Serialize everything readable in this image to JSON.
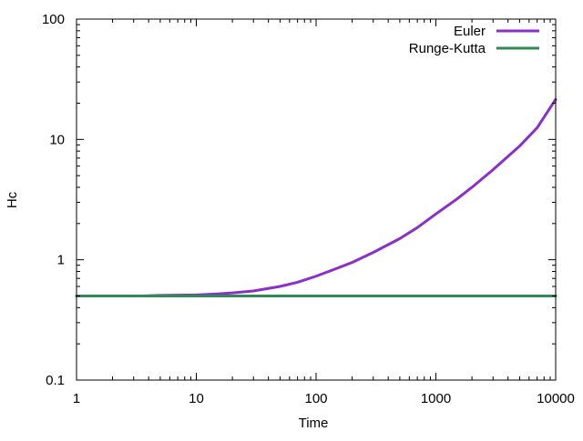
{
  "chart_data": {
    "type": "line",
    "title": "",
    "xlabel": "Time",
    "ylabel": "Hc",
    "x_scale": "log",
    "y_scale": "log",
    "xlim": [
      1,
      10000
    ],
    "ylim": [
      0.1,
      100
    ],
    "x_ticks": [
      {
        "value": 1,
        "label": "1"
      },
      {
        "value": 10,
        "label": "10"
      },
      {
        "value": 100,
        "label": "100"
      },
      {
        "value": 1000,
        "label": "1000"
      },
      {
        "value": 10000,
        "label": "10000"
      }
    ],
    "y_ticks": [
      {
        "value": 0.1,
        "label": "0.1"
      },
      {
        "value": 1,
        "label": "1"
      },
      {
        "value": 10,
        "label": "10"
      },
      {
        "value": 100,
        "label": "100"
      }
    ],
    "grid": false,
    "legend_position": "top-right",
    "series": [
      {
        "name": "Euler",
        "color": "#8b2fc9",
        "points": [
          [
            3.5,
            0.5
          ],
          [
            5,
            0.505
          ],
          [
            10,
            0.51
          ],
          [
            15,
            0.52
          ],
          [
            20,
            0.53
          ],
          [
            30,
            0.55
          ],
          [
            50,
            0.6
          ],
          [
            70,
            0.65
          ],
          [
            100,
            0.73
          ],
          [
            150,
            0.85
          ],
          [
            200,
            0.95
          ],
          [
            300,
            1.15
          ],
          [
            500,
            1.5
          ],
          [
            700,
            1.85
          ],
          [
            1000,
            2.4
          ],
          [
            1500,
            3.2
          ],
          [
            2000,
            4.0
          ],
          [
            3000,
            5.6
          ],
          [
            5000,
            8.8
          ],
          [
            7000,
            12.5
          ],
          [
            10000,
            21.5
          ]
        ]
      },
      {
        "name": "Runge-Kutta",
        "color": "#2e8b57",
        "points": [
          [
            1,
            0.5
          ],
          [
            10000,
            0.5
          ]
        ]
      }
    ]
  }
}
